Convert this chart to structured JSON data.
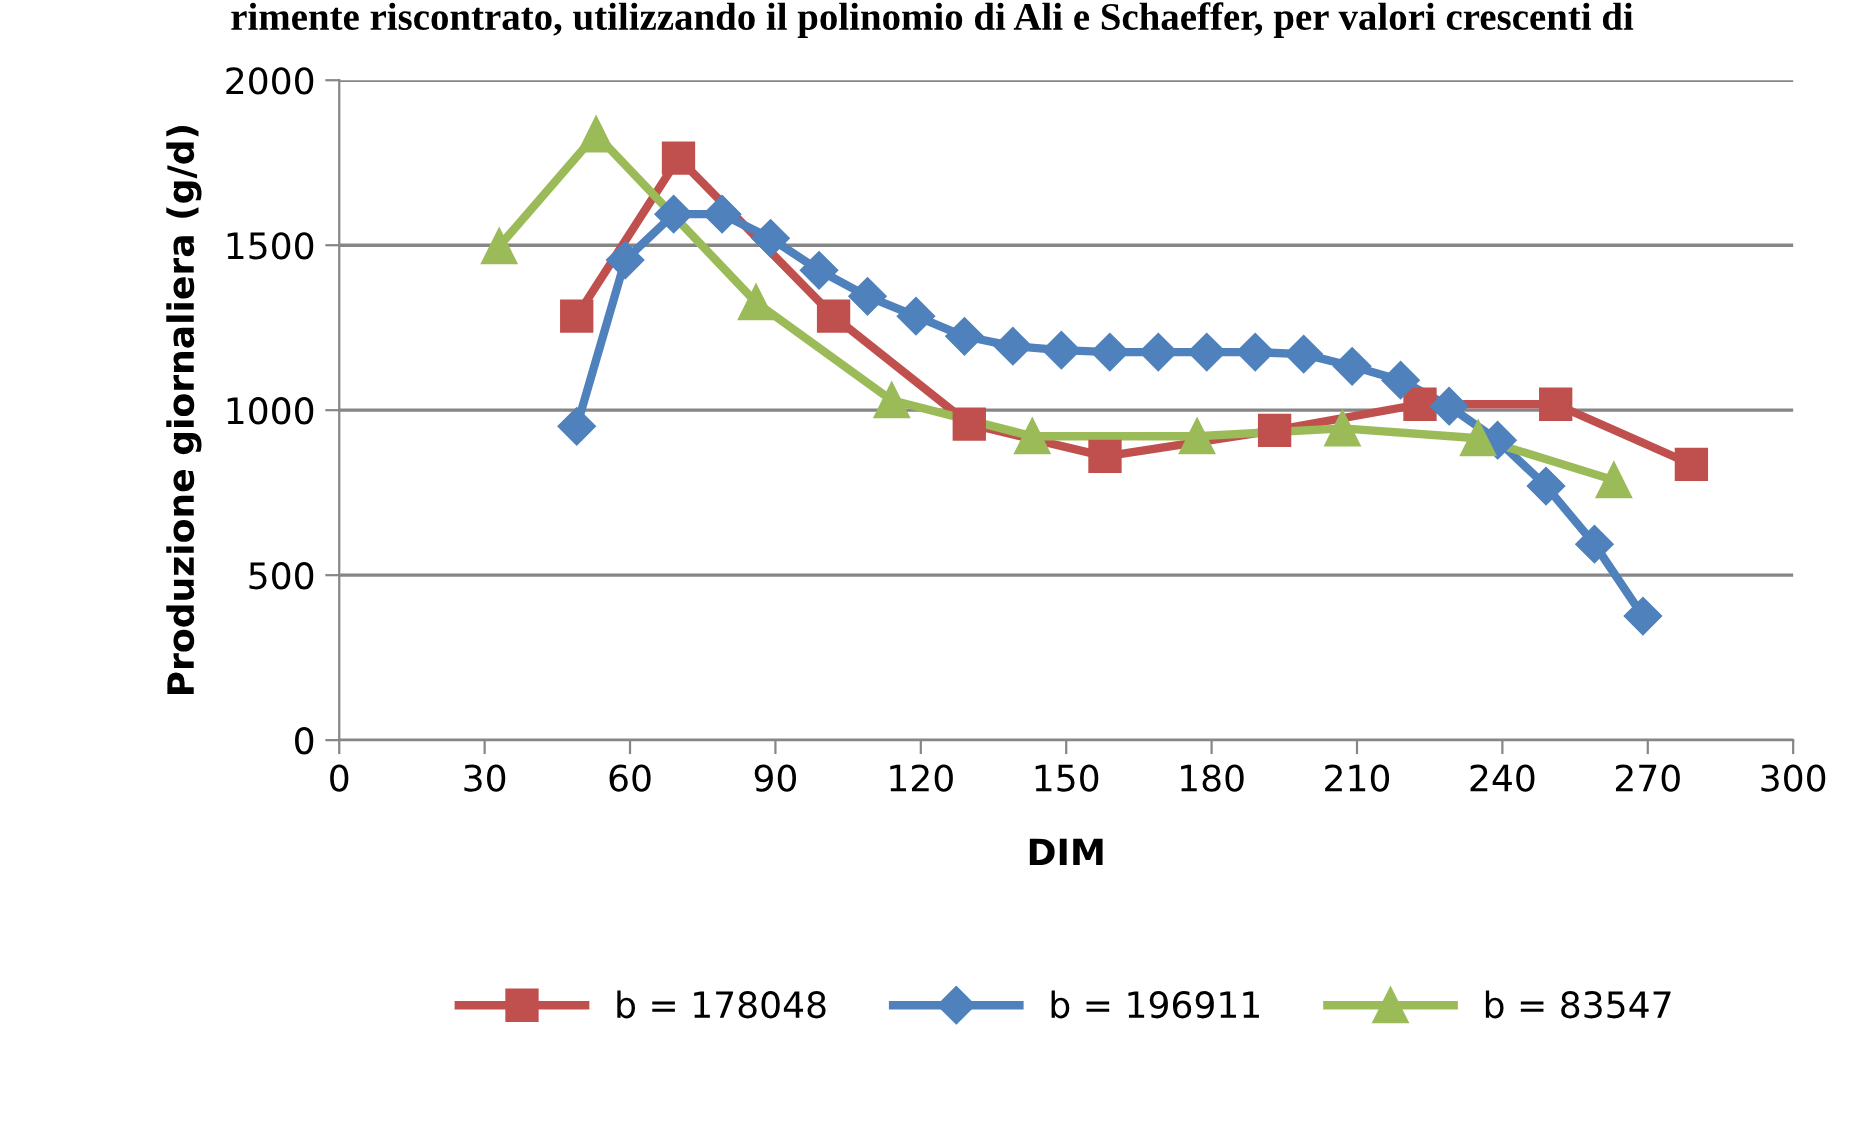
{
  "chart_data": {
    "type": "line",
    "title": "rimente riscontrato, utilizzando il polinomio di Ali e Schaeffer, per valori crescenti di",
    "xlabel": "DIM",
    "ylabel": "Produzione giornaliera (g/d)",
    "xlim": [
      0,
      300
    ],
    "xticks": [
      0,
      30,
      60,
      90,
      120,
      150,
      180,
      210,
      240,
      270,
      300
    ],
    "ylim": [
      0,
      2000
    ],
    "yticks": [
      0,
      500,
      1000,
      1500,
      2000
    ],
    "grid": "y",
    "legend": "bottom",
    "line_style": "solid",
    "series": [
      {
        "name": "b = 178048",
        "color": "#c0504d",
        "marker": "square",
        "x": [
          49,
          70,
          102,
          130,
          158,
          193,
          223,
          251,
          279
        ],
        "values": [
          1285,
          1764,
          1285,
          958,
          860,
          939,
          1018,
          1018,
          836
        ]
      },
      {
        "name": "b = 196911",
        "color": "#4f81bd",
        "marker": "diamond",
        "x": [
          49,
          59,
          69,
          79,
          89,
          99,
          109,
          119,
          129,
          139,
          149,
          159,
          169,
          179,
          189,
          199,
          209,
          219,
          229,
          239,
          249,
          259,
          269
        ],
        "values": [
          951,
          1455,
          1594,
          1594,
          1521,
          1424,
          1345,
          1285,
          1224,
          1194,
          1182,
          1176,
          1176,
          1176,
          1176,
          1170,
          1133,
          1091,
          1012,
          909,
          770,
          594,
          376
        ]
      },
      {
        "name": "b = 83547",
        "color": "#9bbb59",
        "marker": "triangle",
        "x": [
          33,
          53,
          86,
          114,
          143,
          177,
          207,
          235,
          263
        ],
        "values": [
          1497,
          1836,
          1327,
          1030,
          921,
          921,
          945,
          915,
          788
        ]
      }
    ]
  }
}
